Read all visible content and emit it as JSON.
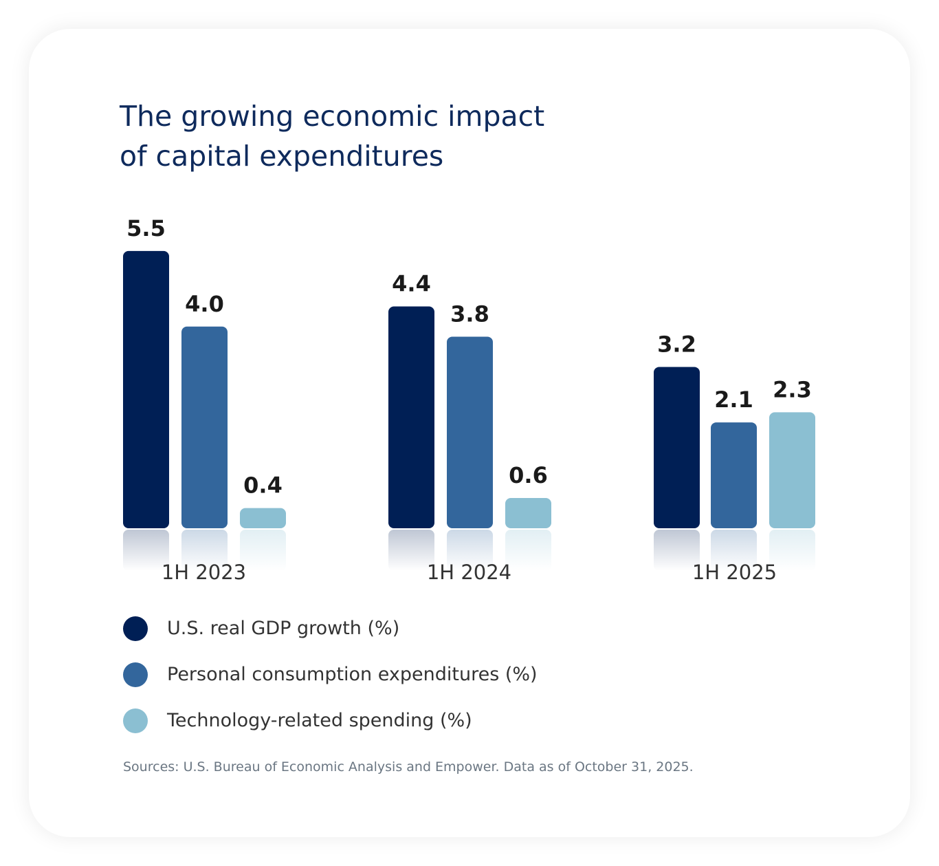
{
  "title_line1": "The growing economic impact",
  "title_line2": "of capital expenditures",
  "chart_data": {
    "type": "bar",
    "title": "The growing economic impact of capital expenditures",
    "categories": [
      "1H 2023",
      "1H 2024",
      "1H 2025"
    ],
    "series": [
      {
        "name": "U.S. real GDP growth (%)",
        "color": "#001f55",
        "values": [
          5.5,
          4.4,
          3.2
        ]
      },
      {
        "name": "Personal consumption expenditures (%)",
        "color": "#33669c",
        "values": [
          4.0,
          3.8,
          2.1
        ]
      },
      {
        "name": "Technology-related spending (%)",
        "color": "#8bbfd2",
        "values": [
          0.4,
          0.6,
          2.3
        ]
      }
    ],
    "data_labels": true,
    "grid": false,
    "legend_position": "bottom-left",
    "xlabel": "",
    "ylabel": ""
  },
  "source": "Sources: U.S. Bureau of Economic Analysis and Empower. Data as of October 31, 2025."
}
